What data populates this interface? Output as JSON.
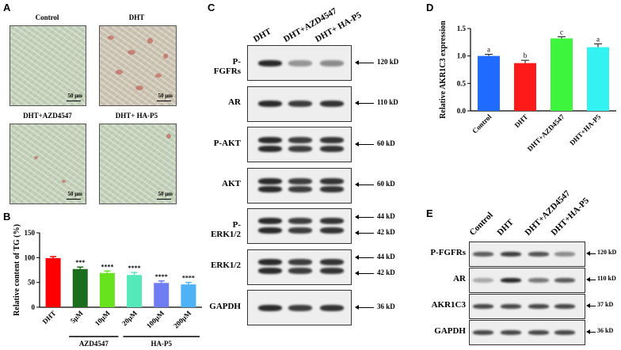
{
  "panel_letters": {
    "A": "A",
    "B": "B",
    "C": "C",
    "D": "D",
    "E": "E"
  },
  "panelA": {
    "images": [
      {
        "title": "Control",
        "scale": "50 μm"
      },
      {
        "title": "DHT",
        "scale": "50 μm"
      },
      {
        "title": "DHT+AZD4547",
        "scale": "50 μm"
      },
      {
        "title": "DHT+ HA-P5",
        "scale": "50 μm"
      }
    ]
  },
  "panelC": {
    "columns": [
      "DHT",
      "DHT+AZD4547",
      "DHT+ HA-P5"
    ],
    "rows": [
      {
        "label": "P-FGFRs",
        "kd": [
          "120 kD"
        ]
      },
      {
        "label": "AR",
        "kd": [
          "110 kD"
        ]
      },
      {
        "label": "P-AKT",
        "kd": [
          "60 kD"
        ]
      },
      {
        "label": "AKT",
        "kd": [
          "60 kD"
        ]
      },
      {
        "label": "P-ERK1/2",
        "kd": [
          "44 kD",
          "42 kD"
        ]
      },
      {
        "label": "ERK1/2",
        "kd": [
          "44 kD",
          "42 kD"
        ]
      },
      {
        "label": "GAPDH",
        "kd": [
          "36 kD"
        ]
      }
    ]
  },
  "panelE": {
    "columns": [
      "Control",
      "DHT",
      "DHT+AZD4547",
      "DHT+HA-P5"
    ],
    "rows": [
      {
        "label": "P-FGFRs",
        "kd": "120 kD"
      },
      {
        "label": "AR",
        "kd": "110 kD"
      },
      {
        "label": "AKR1C3",
        "kd": "37 kD"
      },
      {
        "label": "GAPDH",
        "kd": "36 kD"
      }
    ]
  },
  "chart_data": [
    {
      "panel": "B",
      "type": "bar",
      "ylabel": "Relative content of TG (%)",
      "ylim": [
        0,
        150
      ],
      "yticks": [
        0,
        50,
        100,
        150
      ],
      "categories": [
        "DHT",
        "5μM",
        "10μM",
        "20μM",
        "100μM",
        "200μM"
      ],
      "values": [
        99,
        77,
        69,
        65,
        49,
        46
      ],
      "errors": [
        3,
        4,
        4,
        5,
        4,
        4
      ],
      "colors": [
        "#ff0000",
        "#1b6e1b",
        "#66e31c",
        "#55e8b8",
        "#6f7df2",
        "#4fb2f7"
      ],
      "significance": [
        "",
        "***",
        "****",
        "****",
        "****",
        "****"
      ],
      "groups": [
        {
          "label": "AZD4547",
          "from": 1,
          "to": 2
        },
        {
          "label": "HA-P5",
          "from": 3,
          "to": 5
        }
      ]
    },
    {
      "panel": "D",
      "type": "bar",
      "ylabel": "Relative AKR1C3 expression",
      "ylim": [
        0,
        1.5
      ],
      "yticks": [
        "0.0",
        "0.5",
        "1.0",
        "1.5"
      ],
      "categories": [
        "Control",
        "DHT",
        "DHT+AZD4547",
        "DHT+HA-P5"
      ],
      "values": [
        1.0,
        0.87,
        1.32,
        1.16
      ],
      "errors": [
        0.03,
        0.05,
        0.03,
        0.06
      ],
      "colors": [
        "#1f6bff",
        "#ff1a1a",
        "#3df53d",
        "#33f2f2"
      ],
      "letters": [
        "a",
        "b",
        "c",
        "a"
      ]
    }
  ]
}
